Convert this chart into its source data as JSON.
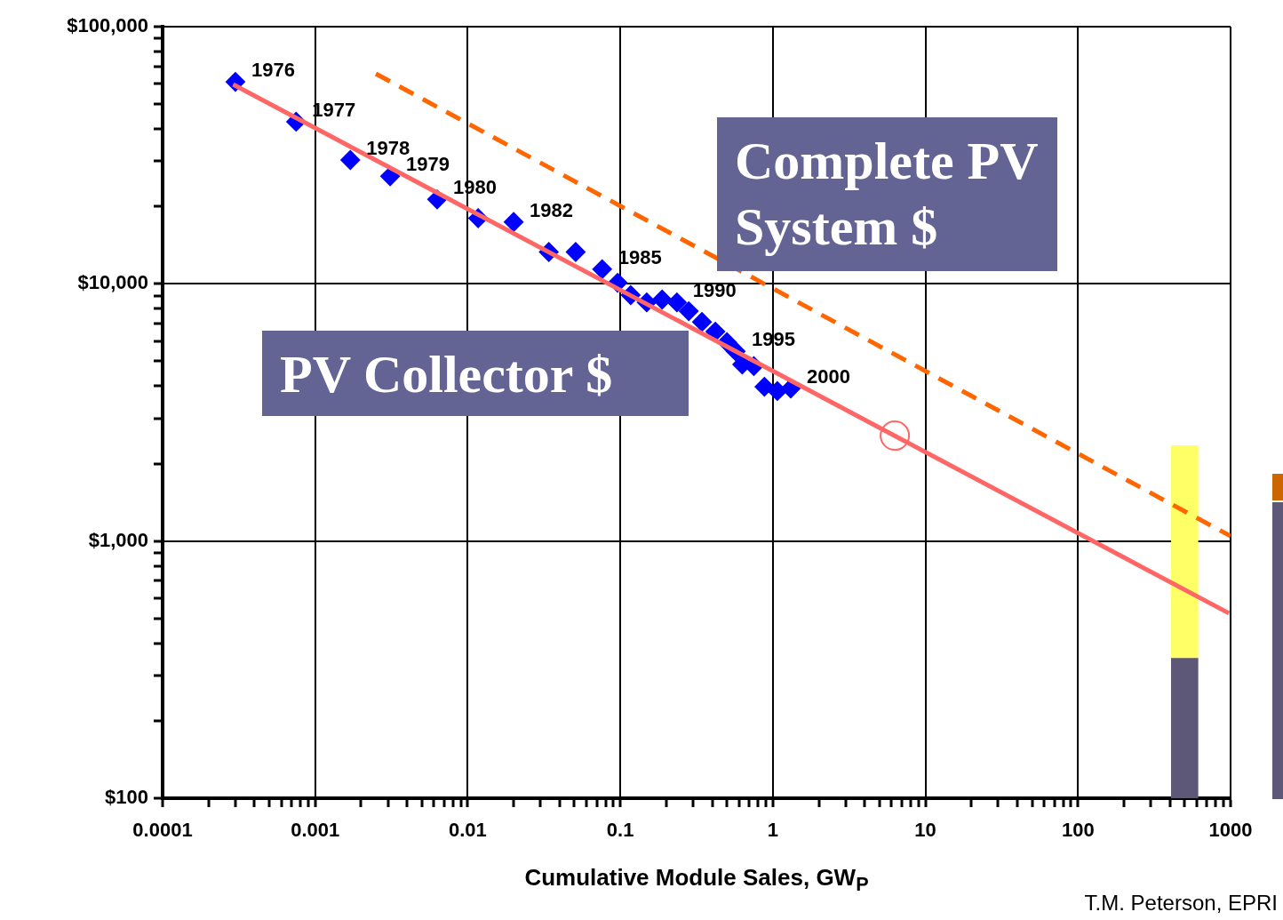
{
  "chart_data": {
    "type": "scatter",
    "xlabel": "Cumulative Module Sales, GW$_{P}$",
    "annotations": [
      {
        "text": "1976",
        "x": 0.0003,
        "y": 61000
      },
      {
        "text": "1977",
        "x": 0.00075,
        "y": 42700
      },
      {
        "text": "1978",
        "x": 0.0017,
        "y": 30300
      },
      {
        "text": "1979",
        "x": 0.0031,
        "y": 26200
      },
      {
        "text": "1980",
        "x": 0.0063,
        "y": 21300
      },
      {
        "text": "1982",
        "x": 0.02,
        "y": 17400
      },
      {
        "text": "1985",
        "x": 0.076,
        "y": 11400
      },
      {
        "text": "1990",
        "x": 0.235,
        "y": 8470
      },
      {
        "text": "1995",
        "x": 0.57,
        "y": 5470
      },
      {
        "text": "2000",
        "x": 1.31,
        "y": 3920
      },
      "T.M. Peterson, EPRI"
    ],
    "log": "xy",
    "grid": true,
    "legend": false,
    "marker": "diamond",
    "xlim": [
      0.0001,
      1000
    ],
    "ylim": [
      100,
      100000
    ],
    "xticks": [
      0.0001,
      {
        "value": 0.0002,
        "label": null
      },
      {
        "value": 0.0003,
        "label": null
      },
      {
        "value": 0.0004,
        "label": null
      },
      {
        "value": 0.0005,
        "label": null
      },
      {
        "value": 0.0006,
        "label": null
      },
      {
        "value": 0.0007,
        "label": null
      },
      {
        "value": 0.0008,
        "label": null
      },
      {
        "value": 0.0009,
        "label": null
      },
      0.001,
      {
        "value": 0.002,
        "label": null
      },
      {
        "value": 0.003,
        "label": null
      },
      {
        "value": 0.004,
        "label": null
      },
      {
        "value": 0.005,
        "label": null
      },
      {
        "value": 0.006,
        "label": null
      },
      {
        "value": 0.007,
        "label": null
      },
      {
        "value": 0.008,
        "label": null
      },
      {
        "value": 0.009,
        "label": null
      },
      0.01,
      {
        "value": 0.02,
        "label": null
      },
      {
        "value": 0.03,
        "label": null
      },
      {
        "value": 0.04,
        "label": null
      },
      {
        "value": 0.05,
        "label": null
      },
      {
        "value": 0.06,
        "label": null
      },
      {
        "value": 0.07,
        "label": null
      },
      {
        "value": 0.08,
        "label": null
      },
      {
        "value": 0.09,
        "label": null
      },
      0.1,
      {
        "value": 0.2,
        "label": null
      },
      {
        "value": 0.3,
        "label": null
      },
      {
        "value": 0.4,
        "label": null
      },
      {
        "value": 0.5,
        "label": null
      },
      {
        "value": 0.6,
        "label": null
      },
      {
        "value": 0.7,
        "label": null
      },
      {
        "value": 0.8,
        "label": null
      },
      {
        "value": 0.9,
        "label": null
      },
      1,
      {
        "value": 2,
        "label": null
      },
      {
        "value": 3,
        "label": null
      },
      {
        "value": 4,
        "label": null
      },
      {
        "value": 5,
        "label": null
      },
      {
        "value": 6,
        "label": null
      },
      {
        "value": 7,
        "label": null
      },
      {
        "value": 8,
        "label": null
      },
      {
        "value": 9,
        "label": null
      },
      10,
      {
        "value": 20,
        "label": null
      },
      {
        "value": 30,
        "label": null
      },
      {
        "value": 40,
        "label": null
      },
      {
        "value": 50,
        "label": null
      },
      {
        "value": 60,
        "label": null
      },
      {
        "value": 70,
        "label": null
      },
      {
        "value": 80,
        "label": null
      },
      {
        "value": 90,
        "label": null
      },
      100,
      {
        "value": 200,
        "label": null
      },
      {
        "value": 300,
        "label": null
      },
      {
        "value": 400,
        "label": null
      },
      {
        "value": 500,
        "label": null
      },
      {
        "value": 600,
        "label": null
      },
      {
        "value": 700,
        "label": null
      },
      {
        "value": 800,
        "label": null
      },
      {
        "value": 900,
        "label": null
      },
      1000
    ],
    "yticks": [
      {
        "value": 100,
        "label": "$100"
      },
      {
        "value": 200,
        "label": null
      },
      {
        "value": 300,
        "label": null
      },
      {
        "value": 400,
        "label": null
      },
      {
        "value": 500,
        "label": null
      },
      {
        "value": 600,
        "label": null
      },
      {
        "value": 700,
        "label": null
      },
      {
        "value": 800,
        "label": null
      },
      {
        "value": 900,
        "label": null
      },
      {
        "value": 1000,
        "label": "$1,000"
      },
      {
        "value": 2000,
        "label": null
      },
      {
        "value": 3000,
        "label": null
      },
      {
        "value": 4000,
        "label": null
      },
      {
        "value": 5000,
        "label": null
      },
      {
        "value": 6000,
        "label": null
      },
      {
        "value": 7000,
        "label": null
      },
      {
        "value": 8000,
        "label": null
      },
      {
        "value": 9000,
        "label": null
      },
      {
        "value": 10000,
        "label": "$10,000"
      },
      {
        "value": 20000,
        "label": null
      },
      {
        "value": 30000,
        "label": null
      },
      {
        "value": 40000,
        "label": null
      },
      {
        "value": 50000,
        "label": null
      },
      {
        "value": 60000,
        "label": null
      },
      {
        "value": 70000,
        "label": null
      },
      {
        "value": 80000,
        "label": null
      },
      {
        "value": 90000,
        "label": null
      },
      {
        "value": 100000,
        "label": "$100,000"
      }
    ],
    "series": [
      {
        "name": "PV Collector $",
        "color": "#0000ff",
        "x": [
          0.0003,
          0.00075,
          0.0017,
          0.0031,
          0.0063,
          0.0117,
          0.02,
          0.034,
          0.051,
          0.076,
          0.096,
          0.117,
          0.149,
          0.188,
          0.235,
          0.281,
          0.343,
          0.42,
          0.5,
          0.57,
          0.63,
          0.75,
          0.88,
          1.07,
          1.31
        ],
        "values": [
          61000,
          42700,
          30300,
          26200,
          21300,
          18000,
          17400,
          13300,
          13300,
          11400,
          10100,
          9040,
          8470,
          8690,
          8470,
          7830,
          7110,
          6520,
          5930,
          5470,
          4860,
          4790,
          3980,
          3830,
          3920
        ]
      },
      {
        "type": "line",
        "color": "#ff6666",
        "marker": "none",
        "line_style": "solid",
        "x": [
          0.00029,
          975
        ],
        "values": [
          59600,
          524
        ]
      },
      {
        "name": "Complete PV System $",
        "type": "line",
        "color": "#ff6600",
        "marker": "none",
        "line_style": "dashed",
        "x": [
          0.0025,
          1000
        ],
        "values": [
          65600,
          1045
        ]
      },
      {
        "color": "#ff6666",
        "marker": "circle",
        "x": [
          6.3
        ],
        "values": [
          2570
        ]
      },
      {
        "type": "bar",
        "color": "#5e5878",
        "x": [
          500
        ],
        "base": [
          100
        ],
        "values": [
          250
        ]
      },
      {
        "type": "bar",
        "color": "#ffff66",
        "x": [
          500
        ],
        "base": [
          350
        ],
        "values": [
          2000
        ]
      }
    ]
  }
}
